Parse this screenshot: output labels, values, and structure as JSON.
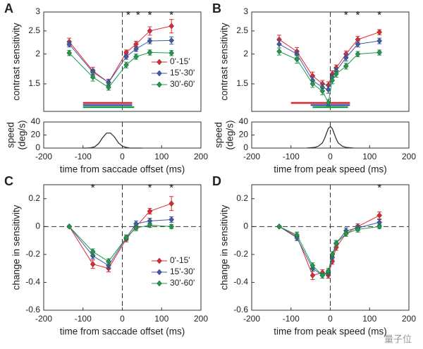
{
  "chart_data": [
    {
      "type": "line",
      "panel_label": "A",
      "ylabel": "contrast sensitivity",
      "yscale": "log",
      "xlim": [
        -200,
        200
      ],
      "ylim": [
        1.15,
        3
      ],
      "yticks": [
        1.5,
        2,
        2.5,
        3
      ],
      "x": [
        -135,
        -75,
        -35,
        10,
        35,
        70,
        125
      ],
      "series": [
        {
          "name": "0'-15'",
          "color": "#e3262d",
          "values": [
            2.25,
            1.7,
            1.52,
            2.03,
            2.2,
            2.5,
            2.62
          ],
          "errors": [
            0.08,
            0.06,
            0.05,
            0.05,
            0.06,
            0.1,
            0.17
          ]
        },
        {
          "name": "15'-30'",
          "color": "#3f5aa8",
          "values": [
            2.2,
            1.68,
            1.52,
            1.95,
            2.1,
            2.27,
            2.28
          ],
          "errors": [
            0.06,
            0.05,
            0.04,
            0.05,
            0.05,
            0.06,
            0.08
          ]
        },
        {
          "name": "30'-60'",
          "color": "#1d9a4b",
          "values": [
            2.02,
            1.6,
            1.45,
            1.8,
            1.95,
            2.03,
            2.02
          ],
          "errors": [
            0.05,
            0.06,
            0.04,
            0.05,
            0.05,
            0.05,
            0.05
          ]
        }
      ],
      "legend": "lower right",
      "vline": 0,
      "intervals": [
        {
          "color": "#e3262d",
          "start": -100,
          "end": 25
        },
        {
          "color": "#3f5aa8",
          "start": -100,
          "end": 25
        },
        {
          "color": "#1d9a4b",
          "start": -100,
          "end": 30
        }
      ],
      "annotations": [
        {
          "text": "*",
          "x": 15
        },
        {
          "text": "*",
          "x": 40
        },
        {
          "text": "*",
          "x": 70
        },
        {
          "text": "*",
          "x": 125
        }
      ]
    },
    {
      "type": "line",
      "ylabel": [
        "speed",
        "(deg/s)"
      ],
      "xlabel": "time from saccade offset (ms)",
      "xlim": [
        -200,
        200
      ],
      "xticks": [
        -200,
        -100,
        0,
        100,
        200
      ],
      "ylim": [
        0,
        40
      ],
      "yticks": [
        0,
        20,
        40
      ],
      "vline": 0,
      "x": [
        -100,
        -90,
        -80,
        -70,
        -60,
        -50,
        -40,
        -30,
        -20,
        -10,
        0,
        10,
        20,
        30,
        40,
        50
      ],
      "series": [
        {
          "color": "#333333",
          "values": [
            0,
            0,
            0.5,
            2,
            7,
            16,
            23,
            23,
            17,
            8,
            3,
            1,
            0,
            0,
            0,
            0
          ]
        }
      ]
    },
    {
      "type": "line",
      "panel_label": "B",
      "ylabel": "contrast sensitivity",
      "yscale": "log",
      "xlim": [
        -200,
        200
      ],
      "ylim": [
        1.15,
        3
      ],
      "yticks": [
        1.5,
        2,
        2.5,
        3
      ],
      "x": [
        -130,
        -85,
        -45,
        -20,
        -5,
        5,
        15,
        40,
        70,
        125
      ],
      "series": [
        {
          "name": "0'-15'",
          "color": "#e3262d",
          "values": [
            2.3,
            2.05,
            1.62,
            1.5,
            1.48,
            1.65,
            1.75,
            2.0,
            2.3,
            2.47
          ],
          "errors": [
            0.1,
            0.08,
            0.06,
            0.05,
            0.05,
            0.05,
            0.05,
            0.06,
            0.07,
            0.06
          ]
        },
        {
          "name": "15'-30'",
          "color": "#3f5aa8",
          "values": [
            2.2,
            2.0,
            1.55,
            1.45,
            1.42,
            1.6,
            1.7,
            1.93,
            2.2,
            2.27
          ],
          "errors": [
            0.08,
            0.07,
            0.05,
            0.05,
            0.05,
            0.05,
            0.05,
            0.06,
            0.06,
            0.06
          ]
        },
        {
          "name": "30'-60'",
          "color": "#1d9a4b",
          "values": [
            2.05,
            1.9,
            1.5,
            1.4,
            1.25,
            1.55,
            1.65,
            1.78,
            2.0,
            2.03
          ],
          "errors": [
            0.07,
            0.07,
            0.05,
            0.05,
            0.04,
            0.05,
            0.05,
            0.05,
            0.05,
            0.05
          ]
        }
      ],
      "vline": 0,
      "intervals": [
        {
          "color": "#e3262d",
          "start": -100,
          "end": 50
        },
        {
          "color": "#3f5aa8",
          "start": -50,
          "end": 50
        },
        {
          "color": "#1d9a4b",
          "start": -45,
          "end": 45
        }
      ],
      "annotations": [
        {
          "text": "*",
          "x": 40
        },
        {
          "text": "*",
          "x": 70
        },
        {
          "text": "*",
          "x": 125
        }
      ]
    },
    {
      "type": "line",
      "ylabel": [
        "speed",
        "(deg/s)"
      ],
      "xlabel": "time from peak speed (ms)",
      "xlim": [
        -200,
        200
      ],
      "xticks": [
        -200,
        -100,
        0,
        100,
        200
      ],
      "ylim": [
        0,
        40
      ],
      "yticks": [
        0,
        20,
        40
      ],
      "vline": 0,
      "x": [
        -60,
        -40,
        -30,
        -20,
        -15,
        -10,
        -5,
        0,
        5,
        10,
        15,
        20,
        30,
        40,
        60
      ],
      "series": [
        {
          "color": "#333333",
          "values": [
            0,
            1,
            3,
            8,
            14,
            22,
            30,
            33,
            30,
            22,
            14,
            8,
            3,
            1,
            0
          ]
        }
      ]
    },
    {
      "type": "line",
      "panel_label": "C",
      "ylabel": "change in sensitivity",
      "xlabel": "time from saccade offset (ms)",
      "xlim": [
        -200,
        200
      ],
      "xticks": [
        -200,
        -100,
        0,
        100,
        200
      ],
      "ylim": [
        -0.6,
        0.3
      ],
      "yticks": [
        -0.6,
        -0.4,
        -0.2,
        0,
        0.2
      ],
      "x": [
        -135,
        -75,
        -35,
        10,
        35,
        70,
        125
      ],
      "series": [
        {
          "name": "0'-15'",
          "color": "#e3262d",
          "values": [
            0,
            -0.27,
            -0.3,
            -0.09,
            0.0,
            0.11,
            0.165
          ],
          "errors": [
            0.005,
            0.03,
            0.025,
            0.02,
            0.02,
            0.02,
            0.05
          ]
        },
        {
          "name": "15'-30'",
          "color": "#3f5aa8",
          "values": [
            0,
            -0.21,
            -0.28,
            -0.08,
            0.02,
            0.04,
            0.05
          ],
          "errors": [
            0.005,
            0.02,
            0.02,
            0.02,
            0.02,
            0.02,
            0.02
          ]
        },
        {
          "name": "30'-60'",
          "color": "#1d9a4b",
          "values": [
            0,
            -0.18,
            -0.25,
            -0.08,
            -0.01,
            0.01,
            0.0
          ],
          "errors": [
            0.005,
            0.02,
            0.02,
            0.02,
            0.02,
            0.015,
            0.015
          ]
        }
      ],
      "legend": "lower right",
      "vline": 0,
      "hline": 0,
      "annotations": [
        {
          "text": "*",
          "x": -75
        },
        {
          "text": "*",
          "x": 70
        },
        {
          "text": "*",
          "x": 125
        }
      ]
    },
    {
      "type": "line",
      "panel_label": "D",
      "ylabel": "change in sensitivity",
      "xlabel": "time from peak speed (ms)",
      "xlim": [
        -200,
        200
      ],
      "xticks": [
        -200,
        -100,
        0,
        100,
        200
      ],
      "ylim": [
        -0.6,
        0.3
      ],
      "yticks": [
        -0.6,
        -0.4,
        -0.2,
        0,
        0.2
      ],
      "x": [
        -130,
        -85,
        -45,
        -20,
        -5,
        5,
        15,
        40,
        70,
        125
      ],
      "series": [
        {
          "name": "0'-15'",
          "color": "#e3262d",
          "values": [
            0,
            -0.07,
            -0.35,
            -0.33,
            -0.35,
            -0.25,
            -0.15,
            -0.05,
            0.0,
            0.08
          ],
          "errors": [
            0.005,
            0.03,
            0.03,
            0.02,
            0.02,
            0.02,
            0.02,
            0.02,
            0.02,
            0.025
          ]
        },
        {
          "name": "15'-30'",
          "color": "#3f5aa8",
          "values": [
            0,
            -0.08,
            -0.3,
            -0.35,
            -0.33,
            -0.22,
            -0.12,
            -0.03,
            -0.01,
            0.03
          ],
          "errors": [
            0.005,
            0.02,
            0.02,
            0.02,
            0.02,
            0.02,
            0.02,
            0.02,
            0.02,
            0.02
          ]
        },
        {
          "name": "30'-60'",
          "color": "#1d9a4b",
          "values": [
            0,
            -0.06,
            -0.28,
            -0.35,
            -0.32,
            -0.2,
            -0.12,
            -0.05,
            -0.02,
            0.0
          ],
          "errors": [
            0.005,
            0.02,
            0.02,
            0.02,
            0.02,
            0.02,
            0.02,
            0.02,
            0.02,
            0.015
          ]
        }
      ],
      "vline": 0,
      "hline": 0,
      "annotations": [
        {
          "text": "*",
          "x": 125
        }
      ]
    }
  ],
  "watermark": "量子位"
}
